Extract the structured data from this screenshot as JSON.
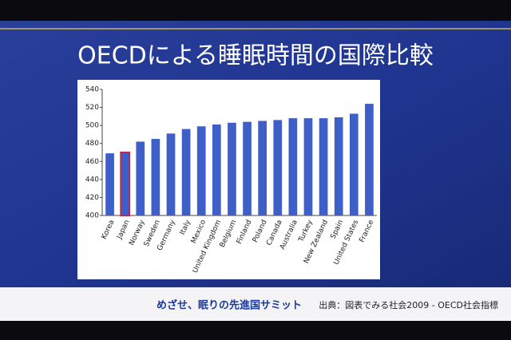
{
  "slide": {
    "title": "OECDによる睡眠時間の国際比較",
    "footer_left": "めざせ、眠りの先進国サミット",
    "footer_right": "出典：図表でみる社会2009 - OECD社会指標"
  },
  "chart_data": {
    "type": "bar",
    "categories": [
      "Korea",
      "Japan",
      "Norway",
      "Sweden",
      "Germany",
      "Italy",
      "Mexico",
      "United Kingdom",
      "Belgium",
      "Finland",
      "Poland",
      "Canada",
      "Australia",
      "Turkey",
      "New Zealand",
      "Spain",
      "United States",
      "France"
    ],
    "values": [
      469,
      470,
      482,
      485,
      491,
      496,
      499,
      501,
      503,
      504,
      505,
      506,
      508,
      508,
      508,
      509,
      513,
      524
    ],
    "color": "#3f5fc8",
    "highlight": {
      "index": 1,
      "edgecolor": "#c8283a"
    },
    "ylim": [
      400,
      540
    ],
    "yticks": [
      400,
      420,
      440,
      460,
      480,
      500,
      520,
      540
    ]
  }
}
